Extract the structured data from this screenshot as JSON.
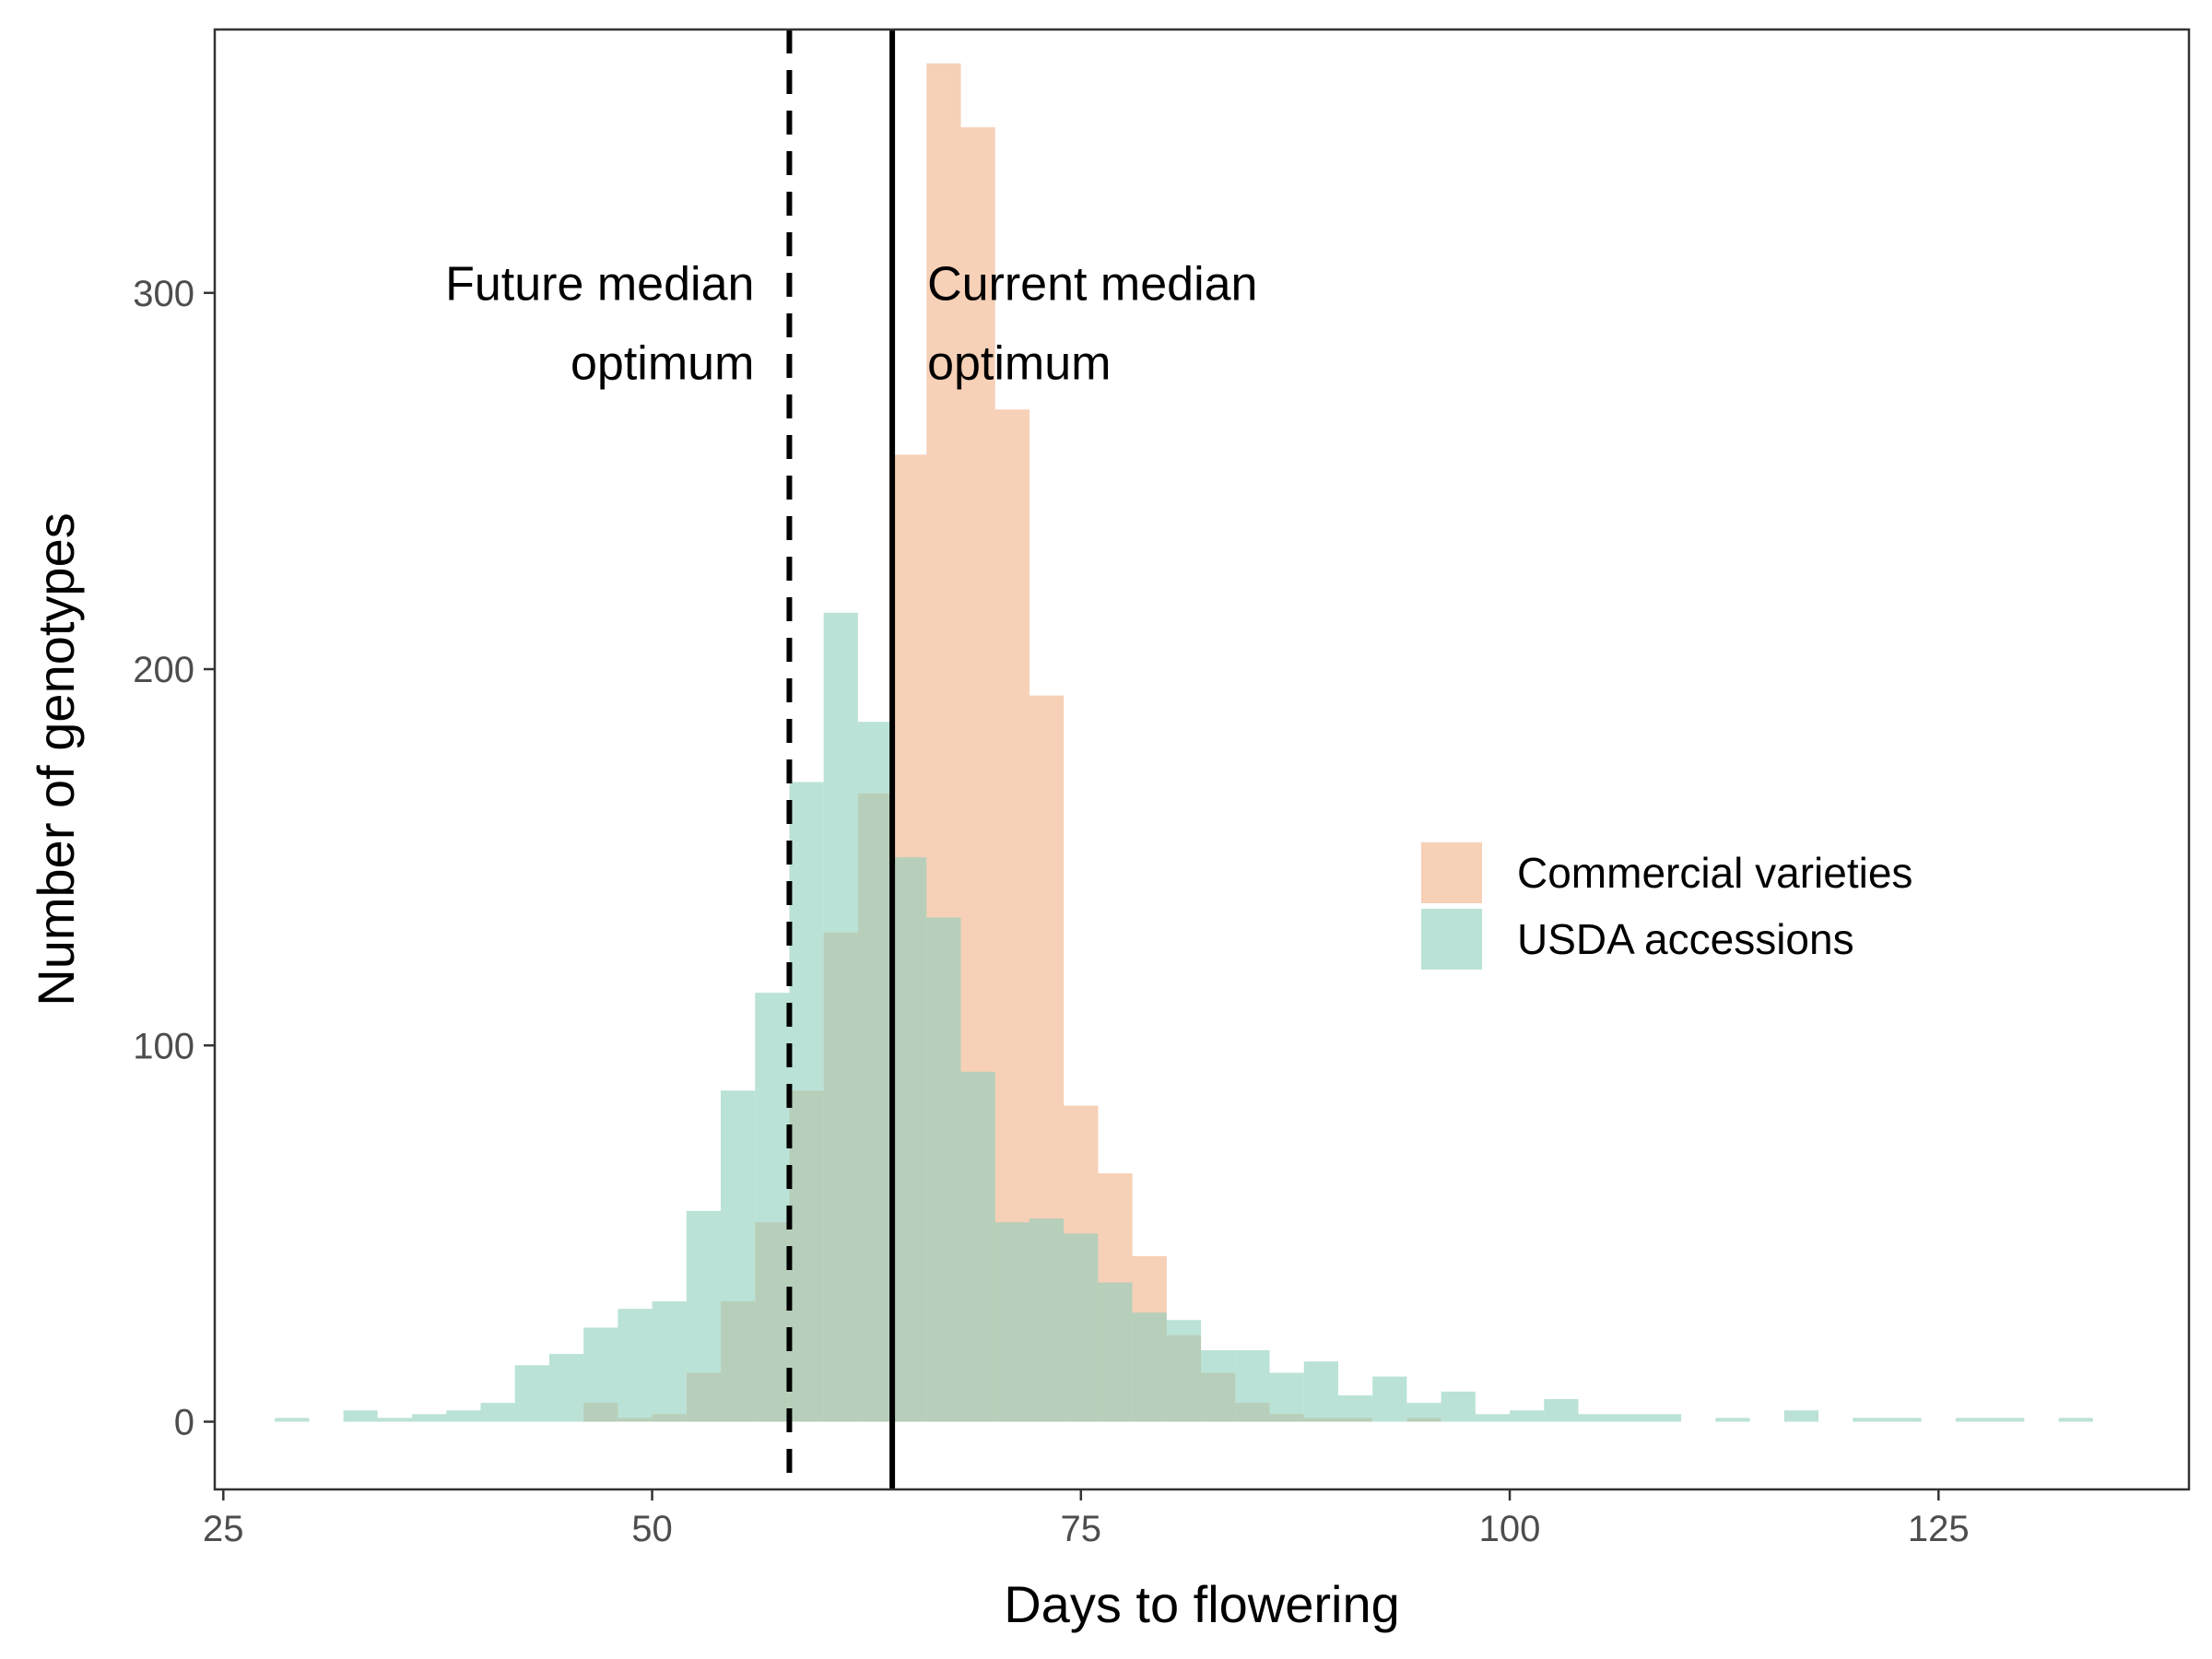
{
  "chart_data": {
    "type": "bar",
    "title": "",
    "xlabel": "Days to flowering",
    "ylabel": "Number of genotypes",
    "xlim": [
      24.5,
      139.6
    ],
    "ylim": [
      -18,
      370
    ],
    "x_ticks": [
      25,
      50,
      75,
      100,
      125
    ],
    "y_ticks": [
      0,
      100,
      200,
      300
    ],
    "grid": false,
    "legend_position": "right",
    "bin_width": 2,
    "series": [
      {
        "name": "Commercial varieties",
        "color": "#eeaa7b",
        "opacity": 0.55,
        "bins": [
          {
            "x": 47,
            "count": 5
          },
          {
            "x": 49,
            "count": 1
          },
          {
            "x": 51,
            "count": 2
          },
          {
            "x": 53,
            "count": 13
          },
          {
            "x": 55,
            "count": 32
          },
          {
            "x": 57,
            "count": 53
          },
          {
            "x": 59,
            "count": 88
          },
          {
            "x": 61,
            "count": 130
          },
          {
            "x": 63,
            "count": 167
          },
          {
            "x": 65,
            "count": 257
          },
          {
            "x": 67,
            "count": 361
          },
          {
            "x": 69,
            "count": 344
          },
          {
            "x": 71,
            "count": 269
          },
          {
            "x": 73,
            "count": 193
          },
          {
            "x": 75,
            "count": 84
          },
          {
            "x": 77,
            "count": 66
          },
          {
            "x": 79,
            "count": 44
          },
          {
            "x": 81,
            "count": 23
          },
          {
            "x": 83,
            "count": 13
          },
          {
            "x": 85,
            "count": 5
          },
          {
            "x": 87,
            "count": 2
          },
          {
            "x": 89,
            "count": 1
          },
          {
            "x": 91,
            "count": 1
          },
          {
            "x": 95,
            "count": 1
          }
        ]
      },
      {
        "name": "USDA accessions",
        "color": "#8dcfbd",
        "opacity": 0.6,
        "bins": [
          {
            "x": 29,
            "count": 1
          },
          {
            "x": 33,
            "count": 3
          },
          {
            "x": 35,
            "count": 1
          },
          {
            "x": 37,
            "count": 2
          },
          {
            "x": 39,
            "count": 3
          },
          {
            "x": 41,
            "count": 5
          },
          {
            "x": 43,
            "count": 15
          },
          {
            "x": 45,
            "count": 18
          },
          {
            "x": 47,
            "count": 25
          },
          {
            "x": 49,
            "count": 30
          },
          {
            "x": 51,
            "count": 32
          },
          {
            "x": 53,
            "count": 56
          },
          {
            "x": 55,
            "count": 88
          },
          {
            "x": 57,
            "count": 114
          },
          {
            "x": 59,
            "count": 170
          },
          {
            "x": 61,
            "count": 215
          },
          {
            "x": 63,
            "count": 186
          },
          {
            "x": 65,
            "count": 150
          },
          {
            "x": 67,
            "count": 134
          },
          {
            "x": 69,
            "count": 93
          },
          {
            "x": 71,
            "count": 53
          },
          {
            "x": 73,
            "count": 54
          },
          {
            "x": 75,
            "count": 50
          },
          {
            "x": 77,
            "count": 37
          },
          {
            "x": 79,
            "count": 29
          },
          {
            "x": 81,
            "count": 27
          },
          {
            "x": 83,
            "count": 19
          },
          {
            "x": 85,
            "count": 19
          },
          {
            "x": 87,
            "count": 13
          },
          {
            "x": 89,
            "count": 16
          },
          {
            "x": 91,
            "count": 7
          },
          {
            "x": 93,
            "count": 12
          },
          {
            "x": 95,
            "count": 5
          },
          {
            "x": 97,
            "count": 8
          },
          {
            "x": 99,
            "count": 2
          },
          {
            "x": 101,
            "count": 3
          },
          {
            "x": 103,
            "count": 6
          },
          {
            "x": 105,
            "count": 2
          },
          {
            "x": 107,
            "count": 2
          },
          {
            "x": 109,
            "count": 2
          },
          {
            "x": 113,
            "count": 1
          },
          {
            "x": 117,
            "count": 3
          },
          {
            "x": 121,
            "count": 1
          },
          {
            "x": 123,
            "count": 1
          },
          {
            "x": 127,
            "count": 1
          },
          {
            "x": 129,
            "count": 1
          },
          {
            "x": 133,
            "count": 1
          }
        ]
      }
    ],
    "reference_lines": [
      {
        "x": 58,
        "style": "dashed",
        "label_lines": [
          "Future median",
          "optimum"
        ],
        "label_side": "left"
      },
      {
        "x": 64,
        "style": "solid",
        "label_lines": [
          "Current median",
          "optimum"
        ],
        "label_side": "right"
      }
    ],
    "annotation_y": 292
  }
}
